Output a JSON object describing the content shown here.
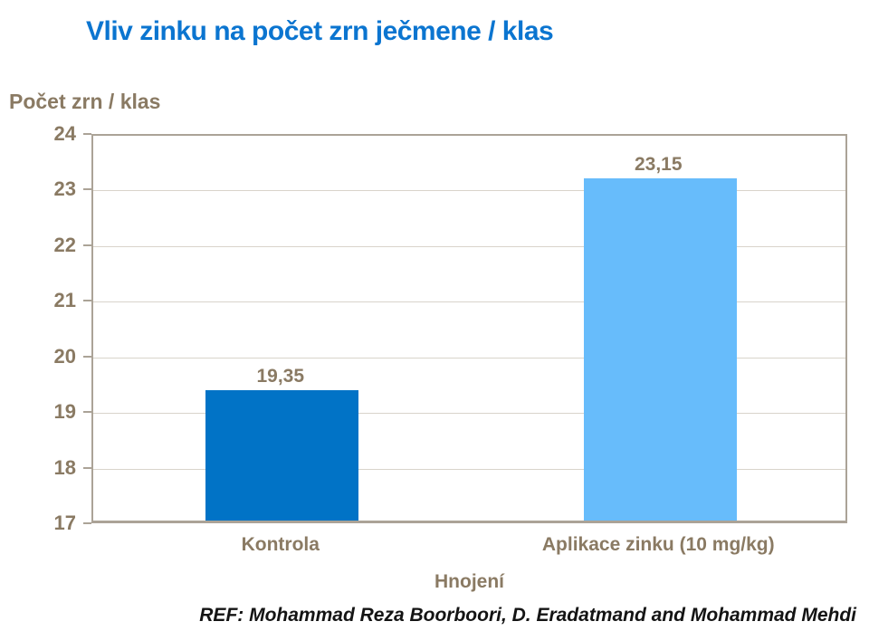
{
  "header": {
    "title": "Vliv zinku na počet zrn ječmene / klas"
  },
  "colors": {
    "title_blue": "#0B75D0",
    "label_brown": "#8A7A63",
    "bar_dark_blue": "#0173C6",
    "bar_light_blue": "#67BCFB",
    "axis_frame": "#ABA397",
    "gridline": "#D9D4CB",
    "footer_text": "#141414"
  },
  "chart_data": {
    "type": "bar",
    "title": "Vliv zinku na počet zrn ječmene / klas",
    "ylabel": "Počet zrn / klas",
    "xlabel": "Hnojení",
    "categories": [
      "Kontrola",
      "Aplikace zinku (10 mg/kg)"
    ],
    "values": [
      19.35,
      23.15
    ],
    "value_labels": [
      "19,35",
      "23,15"
    ],
    "bar_colors": [
      "#0173C6",
      "#67BCFB"
    ],
    "ylim": [
      17,
      24
    ],
    "yticks": [
      17,
      18,
      19,
      20,
      21,
      22,
      23,
      24
    ],
    "grid": true,
    "legend": false
  },
  "footer": {
    "ref": "REF: Mohammad Reza Boorboori,  D. Eradatmand and Mohammad Mehdi"
  }
}
